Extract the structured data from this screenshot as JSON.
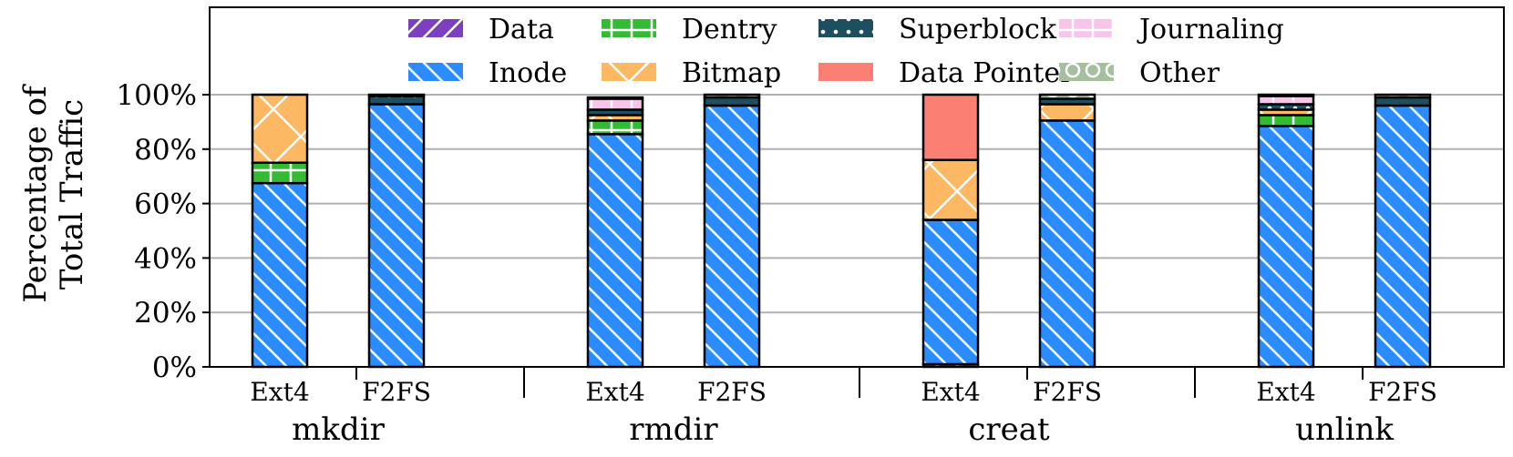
{
  "chart_data": {
    "type": "bar",
    "stacked": true,
    "title": "",
    "ylabel": "Percentage of Total Traffic",
    "ylabel_lines": [
      "Percentage of",
      "Total Traffic"
    ],
    "ylim": [
      0,
      100
    ],
    "y_ticks": [
      0,
      20,
      40,
      60,
      80,
      100
    ],
    "y_tick_labels": [
      "0%",
      "20%",
      "40%",
      "60%",
      "80%",
      "100%"
    ],
    "grid": true,
    "legend_position": "top",
    "groups": [
      "mkdir",
      "rmdir",
      "creat",
      "unlink"
    ],
    "categories": [
      "Ext4",
      "F2FS",
      "Ext4",
      "F2FS",
      "Ext4",
      "F2FS",
      "Ext4",
      "F2FS"
    ],
    "series": [
      {
        "name": "Data",
        "color": "#7b3fbf",
        "pattern": "diag-up",
        "values": [
          0,
          0,
          0,
          0,
          1,
          0,
          0,
          0
        ]
      },
      {
        "name": "Inode",
        "color": "#2b8cff",
        "pattern": "diag-down",
        "values": [
          67.5,
          96.5,
          85.5,
          96,
          53,
          90.5,
          88.5,
          96
        ]
      },
      {
        "name": "Dentry",
        "color": "#33bb33",
        "pattern": "cross",
        "values": [
          7.5,
          0,
          5,
          0,
          0,
          0,
          4,
          0
        ]
      },
      {
        "name": "Bitmap",
        "color": "#fdb863",
        "pattern": "xcross",
        "values": [
          25,
          0,
          2,
          0,
          22,
          6,
          2,
          0
        ]
      },
      {
        "name": "Data Pointer",
        "color": "#fb7f72",
        "pattern": "none",
        "values": [
          0,
          0,
          0,
          0,
          24,
          0,
          0,
          0
        ]
      },
      {
        "name": "Superblock",
        "color": "#1e4f61",
        "pattern": "dots",
        "values": [
          0,
          3,
          2,
          3,
          0,
          2,
          2,
          3
        ]
      },
      {
        "name": "Journaling",
        "color": "#f9c4ea",
        "pattern": "cross",
        "values": [
          0,
          0,
          4,
          0,
          0,
          0,
          3,
          0
        ]
      },
      {
        "name": "Other",
        "color": "#a6bf9e",
        "pattern": "circles",
        "values": [
          0,
          0.5,
          0.5,
          1,
          0,
          1.5,
          0.5,
          1
        ]
      }
    ],
    "legend_order": [
      "Data",
      "Dentry",
      "Superblock",
      "Journaling",
      "Inode",
      "Bitmap",
      "Data Pointer",
      "Other"
    ]
  }
}
